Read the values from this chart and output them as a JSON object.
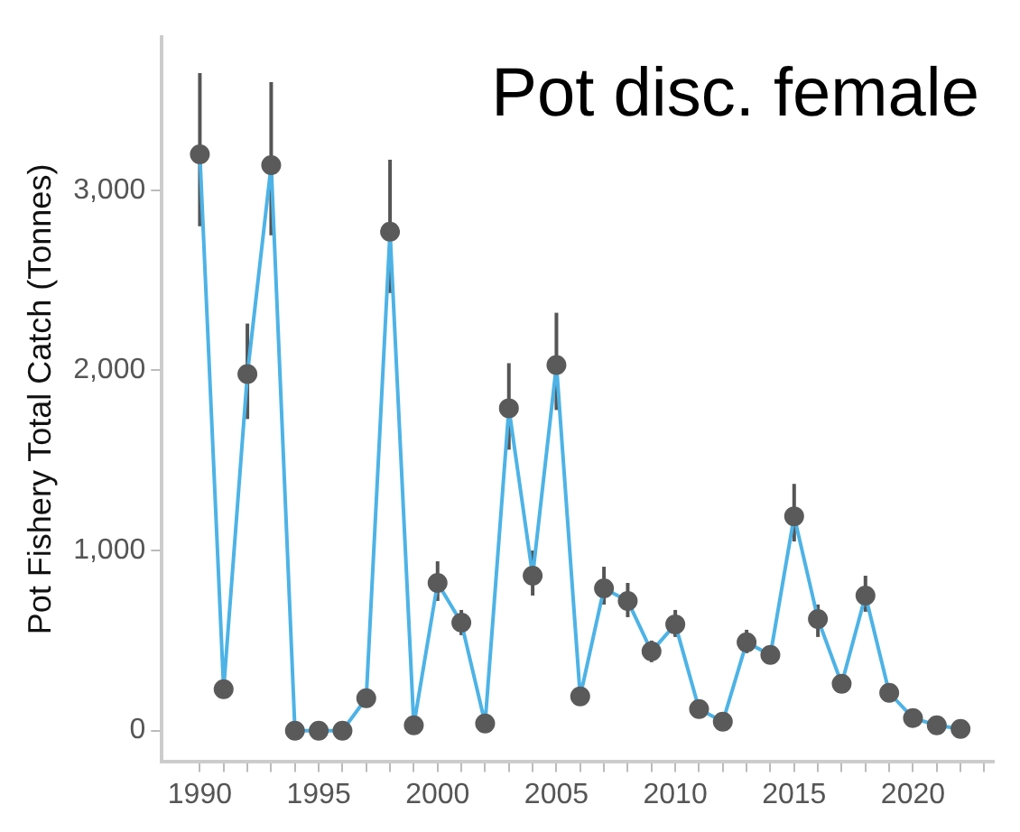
{
  "chart_data": {
    "type": "line",
    "title": "Pot disc. female",
    "ylabel": "Pot Fishery Total Catch (Tonnes)",
    "x": [
      1990,
      1991,
      1992,
      1993,
      1994,
      1995,
      1996,
      1997,
      1998,
      1999,
      2000,
      2001,
      2002,
      2003,
      2004,
      2005,
      2006,
      2007,
      2008,
      2009,
      2010,
      2011,
      2012,
      2013,
      2014,
      2015,
      2016,
      2017,
      2018,
      2019,
      2020,
      2021,
      2022
    ],
    "series": [
      {
        "color": "#4db3e6",
        "values": [
          3200,
          230,
          1980,
          3140,
          0,
          0,
          0,
          180,
          2770,
          30,
          820,
          600,
          40,
          1790,
          860,
          2030,
          190,
          790,
          720,
          440,
          590,
          120,
          50,
          490,
          420,
          1190,
          620,
          260,
          750,
          210,
          70,
          30,
          10
        ],
        "errors": [
          [
            2800,
            3650
          ],
          null,
          [
            1730,
            2260
          ],
          [
            2750,
            3600
          ],
          null,
          null,
          null,
          null,
          [
            2430,
            3170
          ],
          null,
          [
            720,
            940
          ],
          [
            530,
            670
          ],
          null,
          [
            1560,
            2040
          ],
          [
            750,
            1000
          ],
          [
            1780,
            2320
          ],
          null,
          [
            700,
            910
          ],
          [
            630,
            820
          ],
          [
            380,
            500
          ],
          [
            520,
            670
          ],
          null,
          null,
          [
            430,
            560
          ],
          [
            370,
            470
          ],
          [
            1050,
            1370
          ],
          [
            520,
            700
          ],
          null,
          [
            660,
            860
          ],
          null,
          null,
          null,
          null
        ]
      }
    ],
    "xlim": [
      1988.4,
      2023.4
    ],
    "xticks": [
      1990,
      {
        "value": 1991,
        "label": null
      },
      {
        "value": 1992,
        "label": null
      },
      {
        "value": 1993,
        "label": null
      },
      {
        "value": 1994,
        "label": null
      },
      1995,
      {
        "value": 1996,
        "label": null
      },
      {
        "value": 1997,
        "label": null
      },
      {
        "value": 1998,
        "label": null
      },
      {
        "value": 1999,
        "label": null
      },
      2000,
      {
        "value": 2001,
        "label": null
      },
      {
        "value": 2002,
        "label": null
      },
      {
        "value": 2003,
        "label": null
      },
      {
        "value": 2004,
        "label": null
      },
      2005,
      {
        "value": 2006,
        "label": null
      },
      {
        "value": 2007,
        "label": null
      },
      {
        "value": 2008,
        "label": null
      },
      {
        "value": 2009,
        "label": null
      },
      2010,
      {
        "value": 2011,
        "label": null
      },
      {
        "value": 2012,
        "label": null
      },
      {
        "value": 2013,
        "label": null
      },
      {
        "value": 2014,
        "label": null
      },
      2015,
      {
        "value": 2016,
        "label": null
      },
      {
        "value": 2017,
        "label": null
      },
      {
        "value": 2018,
        "label": null
      },
      {
        "value": 2019,
        "label": null
      },
      2020,
      {
        "value": 2021,
        "label": null
      },
      {
        "value": 2022,
        "label": null
      },
      {
        "value": 2023,
        "label": null
      }
    ],
    "ylim": [
      -170,
      3850
    ],
    "yticks": [
      0,
      {
        "value": 1000,
        "label": "1,000"
      },
      {
        "value": 2000,
        "label": "2,000"
      },
      {
        "value": 3000,
        "label": "3,000"
      }
    ],
    "grid": false,
    "legend": false,
    "marker": "circle",
    "line_style": "solid"
  }
}
